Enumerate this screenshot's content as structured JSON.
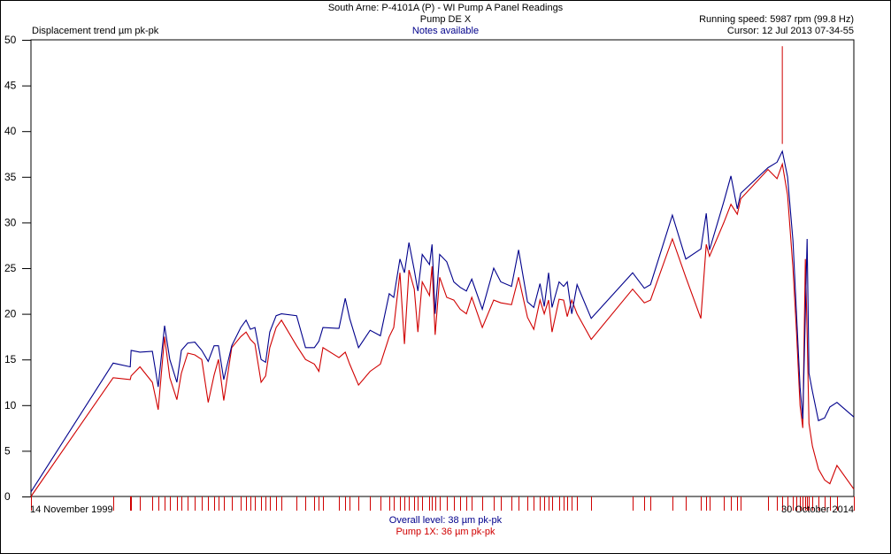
{
  "header": {
    "title": "South Arne: P-4101A (P) - WI Pump A Panel Readings",
    "subtitle": "Pump DE X",
    "notes": "Notes available",
    "running_speed": "Running speed: 5987 rpm (99.8 Hz)",
    "cursor": "Cursor: 12 Jul 2013 07-34-55"
  },
  "footer": {
    "overall": "Overall level: 38 µm pk-pk",
    "pump1x": "Pump 1X: 36 µm pk-pk"
  },
  "colors": {
    "overall": "#00008b",
    "pump1x": "#d00000",
    "markers": "#d00000"
  },
  "chart_data": {
    "type": "line",
    "ylabel": "Displacement trend µm pk-pk",
    "ylim": [
      0,
      50
    ],
    "yticks": [
      "0",
      "5",
      "10",
      "15",
      "20",
      "25",
      "30",
      "35",
      "40",
      "45",
      "50"
    ],
    "xlim": [
      "1999-11-14",
      "2014-10-30"
    ],
    "xtick_labels": [
      "14 November 1999",
      "30 October 2014"
    ],
    "grid": false,
    "cursor": {
      "date": "2013-07-12",
      "range": [
        38.6,
        49.3
      ]
    },
    "x": [
      "1999-11-14",
      "2001-05-13",
      "2001-09-03",
      "2001-09-09",
      "2001-11-07",
      "2002-01-28",
      "2002-03-08",
      "2002-04-19",
      "2002-05-24",
      "2002-07-10",
      "2002-08-09",
      "2002-09-20",
      "2002-11-06",
      "2002-12-22",
      "2003-02-03",
      "2003-03-14",
      "2003-04-12",
      "2003-05-17",
      "2003-07-09",
      "2003-09-07",
      "2003-10-12",
      "2003-11-10",
      "2003-12-10",
      "2004-01-20",
      "2004-02-19",
      "2004-03-18",
      "2004-04-29",
      "2004-06-03",
      "2004-09-12",
      "2004-11-10",
      "2005-01-08",
      "2005-02-07",
      "2005-03-06",
      "2005-06-20",
      "2005-08-01",
      "2005-08-30",
      "2005-10-28",
      "2006-01-13",
      "2006-03-22",
      "2006-05-20",
      "2006-06-19",
      "2006-07-30",
      "2006-08-29",
      "2006-09-28",
      "2006-11-02",
      "2006-11-26",
      "2006-12-25",
      "2007-02-11",
      "2007-02-28",
      "2007-03-21",
      "2007-04-20",
      "2007-06-06",
      "2007-07-23",
      "2007-09-03",
      "2007-10-14",
      "2007-11-19",
      "2008-01-28",
      "2008-04-13",
      "2008-05-30",
      "2008-08-09",
      "2008-09-25",
      "2008-11-23",
      "2009-01-04",
      "2009-02-14",
      "2009-03-14",
      "2009-04-12",
      "2009-05-05",
      "2009-06-21",
      "2009-07-21",
      "2009-08-14",
      "2009-09-13",
      "2009-10-18",
      "2010-01-20",
      "2010-10-22",
      "2011-01-08",
      "2011-02-18",
      "2011-07-13",
      "2011-10-10",
      "2012-01-18",
      "2012-02-23",
      "2012-03-16",
      "2012-06-19",
      "2012-08-05",
      "2012-09-16",
      "2012-10-09",
      "2013-04-08",
      "2013-06-07",
      "2013-07-12",
      "2013-08-16",
      "2013-09-21",
      "2013-10-14",
      "2013-11-07",
      "2013-11-25",
      "2013-12-12",
      "2013-12-24",
      "2014-01-05",
      "2014-01-28",
      "2014-03-09",
      "2014-04-19",
      "2014-05-24",
      "2014-07-10",
      "2014-10-30"
    ],
    "series": [
      {
        "name": "Overall level",
        "color": "#00008b",
        "values": [
          0.5,
          14.6,
          14.2,
          16,
          15.8,
          15.9,
          12,
          18.7,
          15,
          12.5,
          16,
          16.8,
          16.9,
          16,
          14.8,
          16.5,
          16.5,
          12.8,
          16.5,
          18.5,
          19.3,
          18.3,
          18.5,
          15,
          14.7,
          18,
          19.8,
          20,
          19.8,
          16.3,
          16.3,
          17,
          18.5,
          18.4,
          21.7,
          19.5,
          16.3,
          18.2,
          17.6,
          22.2,
          21.8,
          26,
          24.5,
          27.8,
          24.8,
          22.5,
          26.5,
          25.4,
          27.6,
          20,
          26.5,
          25.7,
          23.5,
          22.9,
          22.5,
          23.8,
          20.5,
          25,
          23.5,
          23,
          27,
          21.3,
          20.7,
          23.3,
          20.8,
          24.5,
          20.7,
          23.5,
          23,
          23.5,
          20,
          23.2,
          19.5,
          24.5,
          22.8,
          23.2,
          30.8,
          26,
          27.1,
          31,
          27,
          32.3,
          35.1,
          31.5,
          33.2,
          36,
          36.6,
          37.8,
          35,
          28,
          20,
          12,
          8.5,
          20,
          28.2,
          13.5,
          11.5,
          8.3,
          8.6,
          9.8,
          10.3,
          8.7
        ]
      },
      {
        "name": "Pump 1X",
        "color": "#d00000",
        "values": [
          0,
          13,
          12.8,
          13.2,
          14.2,
          12.5,
          9.5,
          17.5,
          13,
          10.6,
          13.5,
          15.7,
          15.5,
          15,
          10.3,
          13.3,
          15,
          10.5,
          16.3,
          17.5,
          18,
          17.2,
          16.7,
          12.5,
          13.2,
          16.3,
          18.5,
          19.3,
          16.5,
          15,
          14.5,
          13.7,
          16.3,
          15.2,
          15.8,
          14.5,
          12.2,
          13.7,
          14.5,
          17.5,
          18.5,
          24.5,
          16.7,
          24.8,
          22.7,
          18,
          23.5,
          22,
          25.2,
          17.7,
          24,
          21.8,
          21.5,
          20.5,
          20,
          21.8,
          18.5,
          21.5,
          21.2,
          21,
          24,
          19.6,
          18.3,
          21.5,
          20,
          21.5,
          18,
          21.6,
          21.5,
          19.7,
          21.5,
          20,
          17.2,
          22.7,
          21.2,
          21.5,
          28.2,
          24,
          19.5,
          27.6,
          26.3,
          30,
          32,
          30.9,
          32.6,
          35.8,
          34.8,
          36.4,
          33,
          25,
          18,
          10,
          7.5,
          26,
          18,
          8,
          5.5,
          3,
          1.8,
          1.4,
          3.4,
          0.8
        ]
      }
    ]
  }
}
